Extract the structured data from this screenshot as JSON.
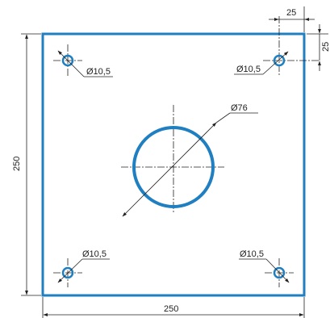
{
  "colors": {
    "outline": "#1f7fc0",
    "dimension": "#222222"
  },
  "dimensions": {
    "plate_width": "250",
    "plate_height": "250",
    "hole_offset_x": "25",
    "hole_offset_y": "25",
    "center_hole": "Ø76",
    "corner_hole_top_left": "Ø10,5",
    "corner_hole_top_right": "Ø10,5",
    "corner_hole_bottom_left": "Ø10,5",
    "corner_hole_bottom_right": "Ø10,5"
  }
}
